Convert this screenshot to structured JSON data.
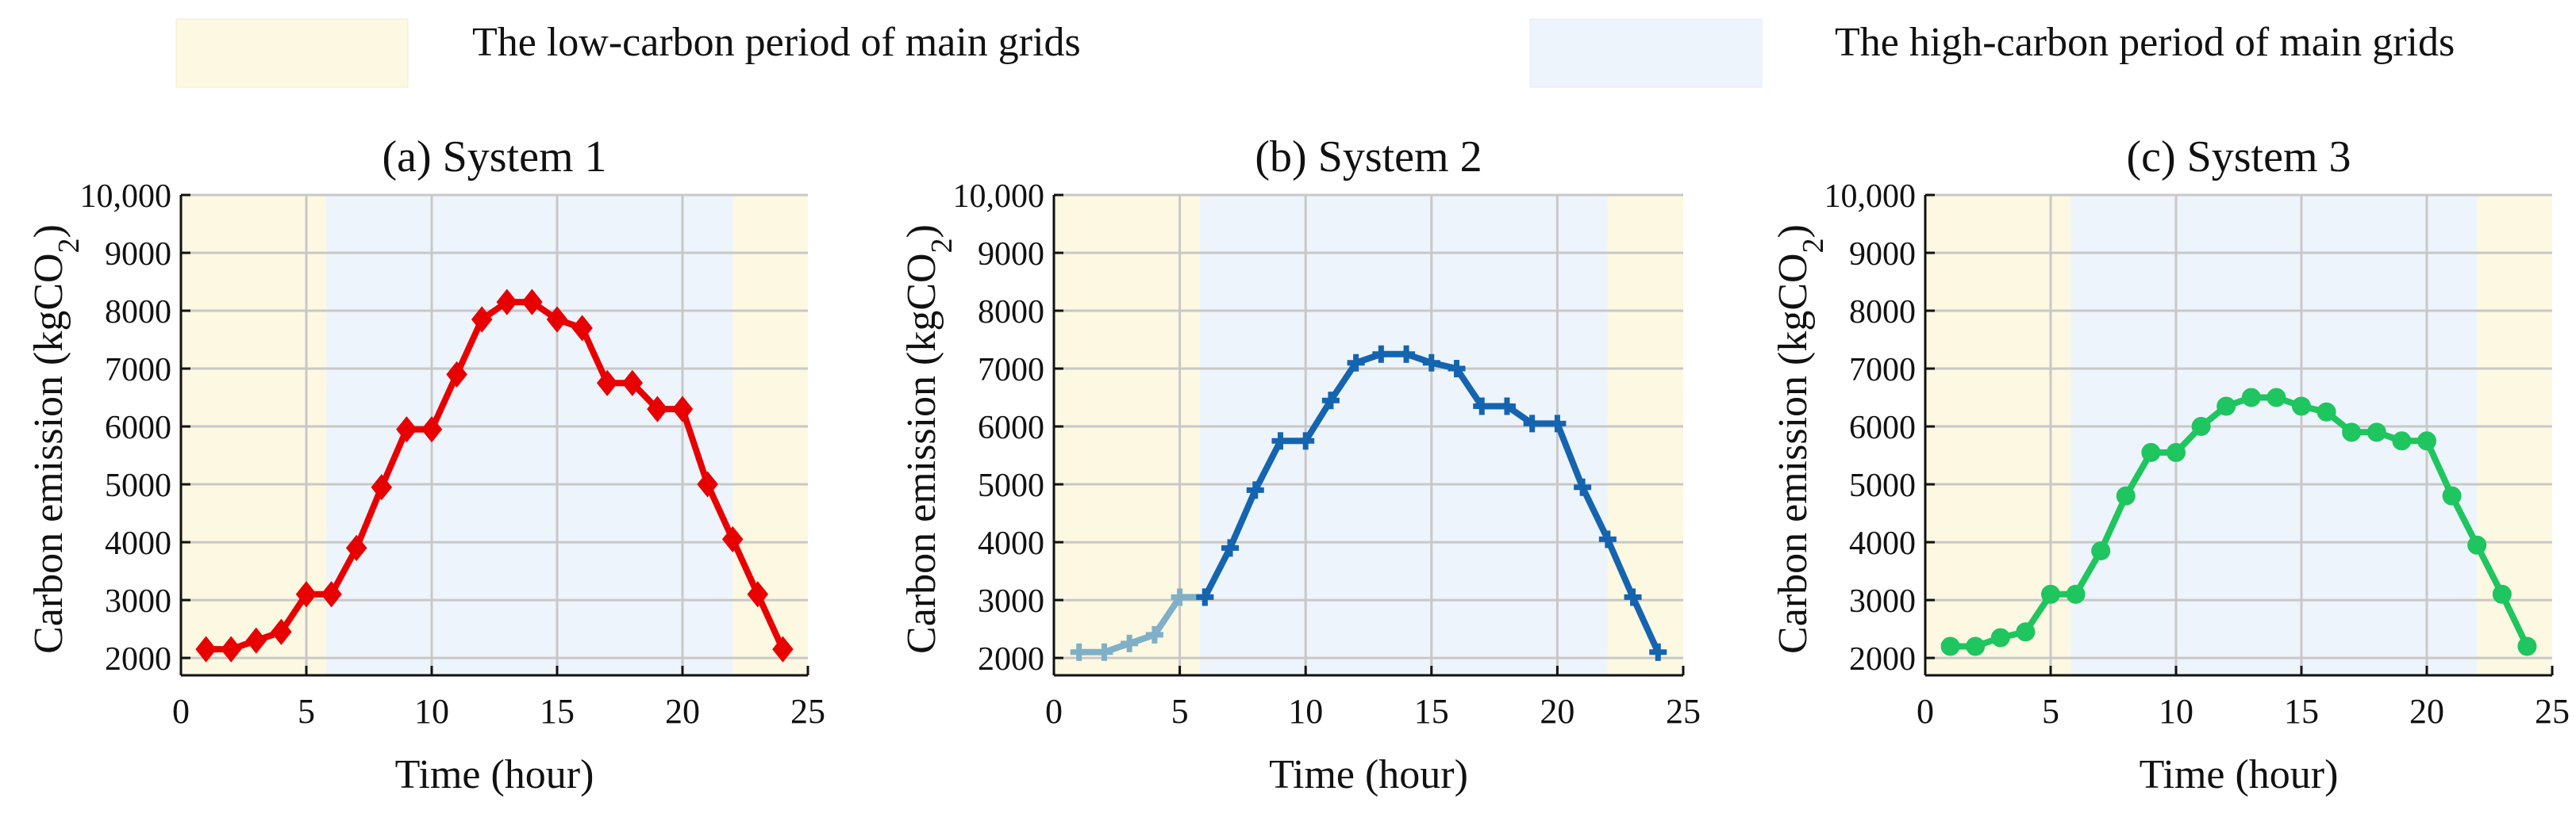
{
  "legend": {
    "low": {
      "label": "The low-carbon period of main grids",
      "color": "#fdf8e1"
    },
    "high": {
      "label": "The high-carbon period of main grids",
      "color": "#eef4fc"
    }
  },
  "chart_data": [
    {
      "type": "line",
      "title": "(a) System 1",
      "xlabel": "Time (hour)",
      "ylabel": "Carbon emission (kgCO2)",
      "xlim": [
        0,
        25
      ],
      "ylim": [
        1700,
        10000
      ],
      "xticks": [
        0,
        5,
        10,
        15,
        20,
        25
      ],
      "yticks": [
        2000,
        3000,
        4000,
        5000,
        6000,
        7000,
        8000,
        9000,
        10000
      ],
      "ytick_labels": [
        "2000",
        "3000",
        "4000",
        "5000",
        "6000",
        "7000",
        "8000",
        "9000",
        "10,000"
      ],
      "low_carbon_periods": [
        [
          0,
          5.8
        ],
        [
          22,
          25
        ]
      ],
      "high_carbon_periods": [
        [
          5.8,
          22
        ]
      ],
      "grid": true,
      "marker": "diamond",
      "series": [
        {
          "x": [
            1,
            2,
            3,
            4,
            5,
            6,
            7,
            8,
            9,
            10,
            11,
            12,
            13,
            14,
            15,
            16,
            17,
            18,
            19,
            20,
            21,
            22,
            23,
            24
          ],
          "values": [
            2150,
            2150,
            2300,
            2450,
            3100,
            3100,
            3900,
            4950,
            5950,
            5950,
            6900,
            7850,
            8150,
            8150,
            7850,
            7700,
            6750,
            6750,
            6300,
            6300,
            5000,
            4050,
            3100,
            2150
          ],
          "color": "#e80000"
        }
      ]
    },
    {
      "type": "line",
      "title": "(b) System 2",
      "xlabel": "Time (hour)",
      "ylabel": "Carbon emission (kgCO2)",
      "xlim": [
        0,
        25
      ],
      "ylim": [
        1700,
        10000
      ],
      "xticks": [
        0,
        5,
        10,
        15,
        20,
        25
      ],
      "yticks": [
        2000,
        3000,
        4000,
        5000,
        6000,
        7000,
        8000,
        9000,
        10000
      ],
      "ytick_labels": [
        "2000",
        "3000",
        "4000",
        "5000",
        "6000",
        "7000",
        "8000",
        "9000",
        "10,000"
      ],
      "low_carbon_periods": [
        [
          0,
          5.8
        ],
        [
          22,
          25
        ]
      ],
      "high_carbon_periods": [
        [
          5.8,
          22
        ]
      ],
      "grid": true,
      "marker": "plus",
      "series": [
        {
          "x": [
            1,
            2,
            3,
            4,
            5,
            6
          ],
          "values": [
            2100,
            2100,
            2250,
            2400,
            3050,
            3050
          ],
          "color": "#7fb0c8"
        },
        {
          "x": [
            6,
            7,
            8,
            9,
            10,
            11,
            12,
            13,
            14,
            15,
            16,
            17,
            18,
            19,
            20,
            21,
            22,
            23,
            24
          ],
          "values": [
            3050,
            3900,
            4900,
            5750,
            5750,
            6450,
            7100,
            7250,
            7250,
            7100,
            7000,
            6350,
            6350,
            6050,
            6050,
            4950,
            4050,
            3050,
            2100
          ],
          "color": "#1464b0"
        }
      ]
    },
    {
      "type": "line",
      "title": "(c) System 3",
      "xlabel": "Time (hour)",
      "ylabel": "Carbon emission (kgCO2)",
      "xlim": [
        0,
        25
      ],
      "ylim": [
        1700,
        10000
      ],
      "xticks": [
        0,
        5,
        10,
        15,
        20,
        25
      ],
      "yticks": [
        2000,
        3000,
        4000,
        5000,
        6000,
        7000,
        8000,
        9000,
        10000
      ],
      "ytick_labels": [
        "2000",
        "3000",
        "4000",
        "5000",
        "6000",
        "7000",
        "8000",
        "9000",
        "10,000"
      ],
      "low_carbon_periods": [
        [
          0,
          5.8
        ],
        [
          22,
          25
        ]
      ],
      "high_carbon_periods": [
        [
          5.8,
          22
        ]
      ],
      "grid": true,
      "marker": "circle",
      "series": [
        {
          "x": [
            1,
            2,
            3,
            4,
            5,
            6,
            7,
            8,
            9,
            10,
            11,
            12,
            13,
            14,
            15,
            16,
            17,
            18,
            19,
            20,
            21,
            22,
            23,
            24
          ],
          "values": [
            2200,
            2200,
            2350,
            2450,
            3100,
            3100,
            3850,
            4800,
            5550,
            5550,
            6000,
            6350,
            6500,
            6500,
            6350,
            6250,
            5900,
            5900,
            5750,
            5750,
            4800,
            3950,
            3100,
            2200
          ],
          "color": "#1fc55e"
        }
      ]
    }
  ]
}
